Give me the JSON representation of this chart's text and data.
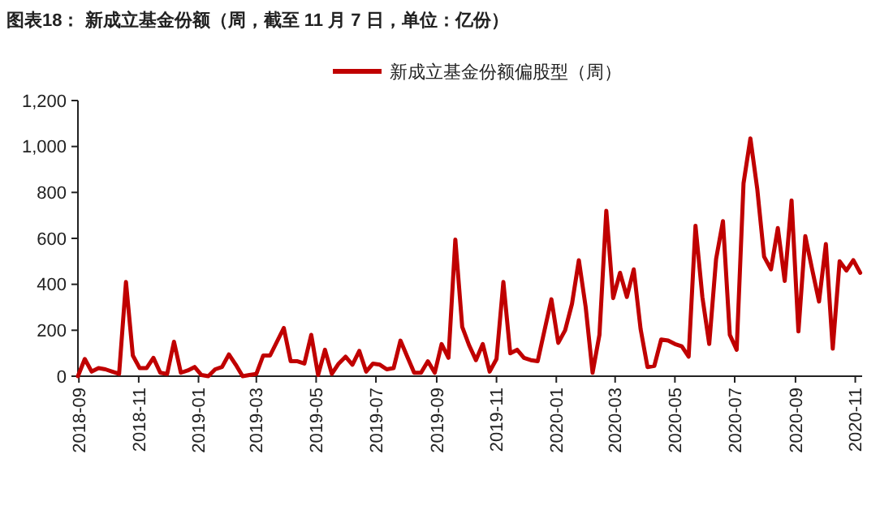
{
  "chart_data": {
    "type": "line",
    "title": "图表18：  新成立基金份额（周，截至 11 月 7 日，单位：亿份）",
    "legend": "top",
    "x": [
      "2018-08-31",
      "2018-09-07",
      "2018-09-14",
      "2018-09-21",
      "2018-09-28",
      "2018-10-05",
      "2018-10-12",
      "2018-10-19",
      "2018-10-26",
      "2018-11-02",
      "2018-11-09",
      "2018-11-16",
      "2018-11-23",
      "2018-11-30",
      "2018-12-07",
      "2018-12-14",
      "2018-12-21",
      "2018-12-28",
      "2019-01-04",
      "2019-01-11",
      "2019-01-18",
      "2019-01-25",
      "2019-02-01",
      "2019-02-08",
      "2019-02-15",
      "2019-02-22",
      "2019-03-01",
      "2019-03-08",
      "2019-03-15",
      "2019-03-22",
      "2019-03-29",
      "2019-04-05",
      "2019-04-12",
      "2019-04-19",
      "2019-04-26",
      "2019-05-03",
      "2019-05-10",
      "2019-05-17",
      "2019-05-24",
      "2019-05-31",
      "2019-06-07",
      "2019-06-14",
      "2019-06-21",
      "2019-06-28",
      "2019-07-05",
      "2019-07-12",
      "2019-07-19",
      "2019-07-26",
      "2019-08-02",
      "2019-08-09",
      "2019-08-16",
      "2019-08-23",
      "2019-08-30",
      "2019-09-06",
      "2019-09-13",
      "2019-09-20",
      "2019-09-27",
      "2019-10-04",
      "2019-10-11",
      "2019-10-18",
      "2019-10-25",
      "2019-11-01",
      "2019-11-08",
      "2019-11-15",
      "2019-11-22",
      "2019-11-29",
      "2019-12-06",
      "2019-12-13",
      "2019-12-20",
      "2019-12-27",
      "2020-01-03",
      "2020-01-10",
      "2020-01-17",
      "2020-01-24",
      "2020-01-31",
      "2020-02-07",
      "2020-02-14",
      "2020-02-21",
      "2020-02-28",
      "2020-03-06",
      "2020-03-13",
      "2020-03-20",
      "2020-03-27",
      "2020-04-03",
      "2020-04-10",
      "2020-04-17",
      "2020-04-24",
      "2020-05-01",
      "2020-05-08",
      "2020-05-15",
      "2020-05-22",
      "2020-05-29",
      "2020-06-05",
      "2020-06-12",
      "2020-06-19",
      "2020-06-26",
      "2020-07-03",
      "2020-07-10",
      "2020-07-17",
      "2020-07-24",
      "2020-07-31",
      "2020-08-07",
      "2020-08-14",
      "2020-08-21",
      "2020-08-28",
      "2020-09-04",
      "2020-09-11",
      "2020-09-18",
      "2020-09-25",
      "2020-10-02",
      "2020-10-09",
      "2020-10-16",
      "2020-10-23",
      "2020-10-30",
      "2020-11-06"
    ],
    "series": [
      {
        "name": "新成立基金份额偏股型（周）",
        "color": "#c00000",
        "values": [
          0,
          75,
          20,
          35,
          30,
          20,
          10,
          410,
          90,
          35,
          35,
          80,
          15,
          10,
          150,
          15,
          25,
          40,
          5,
          0,
          30,
          40,
          95,
          50,
          0,
          5,
          10,
          90,
          90,
          150,
          210,
          65,
          65,
          55,
          180,
          5,
          115,
          10,
          55,
          85,
          50,
          110,
          20,
          55,
          50,
          30,
          35,
          155,
          85,
          15,
          15,
          65,
          15,
          140,
          80,
          595,
          215,
          135,
          70,
          140,
          20,
          75,
          410,
          100,
          115,
          80,
          70,
          65,
          200,
          335,
          145,
          200,
          315,
          505,
          300,
          15,
          180,
          720,
          340,
          450,
          345,
          465,
          205,
          40,
          45,
          160,
          155,
          140,
          130,
          85,
          655,
          345,
          140,
          510,
          675,
          180,
          115,
          840,
          1035,
          815,
          520,
          465,
          645,
          415,
          765,
          195,
          610,
          465,
          325,
          575,
          120,
          500,
          460,
          505,
          450
        ]
      }
    ],
    "xlim": [
      "2018-08-31",
      "2020-11-08"
    ],
    "xticks": [
      "2018-09",
      "2018-11",
      "2019-01",
      "2019-03",
      "2019-05",
      "2019-07",
      "2019-09",
      "2019-11",
      "2020-01",
      "2020-03",
      "2020-05",
      "2020-07",
      "2020-09",
      "2020-11"
    ],
    "ylim": [
      0,
      1200
    ],
    "yticks": [
      0,
      200,
      400,
      600,
      800,
      {
        "value": 1000,
        "label": "1,000"
      },
      {
        "value": 1200,
        "label": "1,200"
      }
    ]
  }
}
